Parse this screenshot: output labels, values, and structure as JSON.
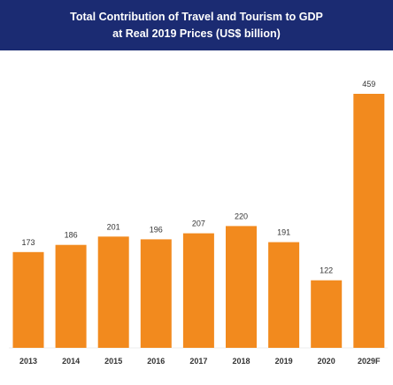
{
  "header": {
    "title_line1": "Total Contribution of Travel and Tourism to GDP",
    "title_line2": "at Real 2019 Prices (US$ billion)"
  },
  "colors": {
    "header_bg": "#1b2b72",
    "bar": "#f28a1e",
    "text": "#333333"
  },
  "chart_data": {
    "type": "bar",
    "title": "Total Contribution of Travel and Tourism to GDP at Real 2019 Prices (US$ billion)",
    "categories": [
      "2013",
      "2014",
      "2015",
      "2016",
      "2017",
      "2018",
      "2019",
      "2020",
      "2029F"
    ],
    "values": [
      173,
      186,
      201,
      196,
      207,
      220,
      191,
      122,
      459
    ],
    "data_labels": [
      "173",
      "186",
      "201",
      "196",
      "207",
      "220",
      "191",
      "122",
      "459"
    ],
    "xlabel": "",
    "ylabel": "",
    "ylim": [
      0,
      459
    ],
    "grid": false,
    "legend": "none"
  }
}
